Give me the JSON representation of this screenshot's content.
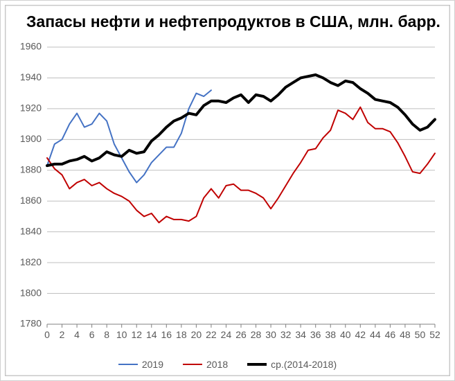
{
  "chart": {
    "type": "line",
    "title": "Запасы нефти и нефтепродуктов в США, млн. барр.",
    "title_fontsize": 23,
    "background_color": "#ffffff",
    "grid_color": "#bfbfbf",
    "axis_color": "#808080",
    "tick_label_color": "#595959",
    "tick_label_fontsize": 14,
    "x": {
      "min": 0,
      "max": 52,
      "tick_step": 2,
      "ticks": [
        0,
        2,
        4,
        6,
        8,
        10,
        12,
        14,
        16,
        18,
        20,
        22,
        24,
        26,
        28,
        30,
        32,
        34,
        36,
        38,
        40,
        42,
        44,
        46,
        48,
        50,
        52
      ]
    },
    "y": {
      "min": 1780,
      "max": 1960,
      "tick_step": 20,
      "ticks": [
        1780,
        1800,
        1820,
        1840,
        1860,
        1880,
        1900,
        1920,
        1940,
        1960
      ]
    },
    "series": [
      {
        "name": "2019",
        "label": "2019",
        "color": "#4472c4",
        "line_width": 2,
        "data": [
          [
            0,
            1883
          ],
          [
            1,
            1897
          ],
          [
            2,
            1900
          ],
          [
            3,
            1910
          ],
          [
            4,
            1917
          ],
          [
            5,
            1908
          ],
          [
            6,
            1910
          ],
          [
            7,
            1917
          ],
          [
            8,
            1912
          ],
          [
            9,
            1897
          ],
          [
            10,
            1888
          ],
          [
            11,
            1879
          ],
          [
            12,
            1872
          ],
          [
            13,
            1877
          ],
          [
            14,
            1885
          ],
          [
            15,
            1890
          ],
          [
            16,
            1895
          ],
          [
            17,
            1895
          ],
          [
            18,
            1904
          ],
          [
            19,
            1920
          ],
          [
            20,
            1930
          ],
          [
            21,
            1928
          ],
          [
            22,
            1932
          ]
        ]
      },
      {
        "name": "2018",
        "label": "2018",
        "color": "#c00000",
        "line_width": 2,
        "data": [
          [
            0,
            1888
          ],
          [
            1,
            1881
          ],
          [
            2,
            1877
          ],
          [
            3,
            1868
          ],
          [
            4,
            1872
          ],
          [
            5,
            1874
          ],
          [
            6,
            1870
          ],
          [
            7,
            1872
          ],
          [
            8,
            1868
          ],
          [
            9,
            1865
          ],
          [
            10,
            1863
          ],
          [
            11,
            1860
          ],
          [
            12,
            1854
          ],
          [
            13,
            1850
          ],
          [
            14,
            1852
          ],
          [
            15,
            1846
          ],
          [
            16,
            1850
          ],
          [
            17,
            1848
          ],
          [
            18,
            1848
          ],
          [
            19,
            1847
          ],
          [
            20,
            1850
          ],
          [
            21,
            1862
          ],
          [
            22,
            1868
          ],
          [
            23,
            1862
          ],
          [
            24,
            1870
          ],
          [
            25,
            1871
          ],
          [
            26,
            1867
          ],
          [
            27,
            1867
          ],
          [
            28,
            1865
          ],
          [
            29,
            1862
          ],
          [
            30,
            1855
          ],
          [
            31,
            1862
          ],
          [
            32,
            1870
          ],
          [
            33,
            1878
          ],
          [
            34,
            1885
          ],
          [
            35,
            1893
          ],
          [
            36,
            1894
          ],
          [
            37,
            1901
          ],
          [
            38,
            1906
          ],
          [
            39,
            1919
          ],
          [
            40,
            1917
          ],
          [
            41,
            1913
          ],
          [
            42,
            1921
          ],
          [
            43,
            1911
          ],
          [
            44,
            1907
          ],
          [
            45,
            1907
          ],
          [
            46,
            1905
          ],
          [
            47,
            1898
          ],
          [
            48,
            1889
          ],
          [
            49,
            1879
          ],
          [
            50,
            1878
          ],
          [
            51,
            1884
          ],
          [
            52,
            1891
          ]
        ]
      },
      {
        "name": "avg",
        "label": "ср.(2014-2018)",
        "color": "#000000",
        "line_width": 4,
        "data": [
          [
            0,
            1883
          ],
          [
            1,
            1884
          ],
          [
            2,
            1884
          ],
          [
            3,
            1886
          ],
          [
            4,
            1887
          ],
          [
            5,
            1889
          ],
          [
            6,
            1886
          ],
          [
            7,
            1888
          ],
          [
            8,
            1892
          ],
          [
            9,
            1890
          ],
          [
            10,
            1889
          ],
          [
            11,
            1893
          ],
          [
            12,
            1891
          ],
          [
            13,
            1892
          ],
          [
            14,
            1899
          ],
          [
            15,
            1903
          ],
          [
            16,
            1908
          ],
          [
            17,
            1912
          ],
          [
            18,
            1914
          ],
          [
            19,
            1917
          ],
          [
            20,
            1916
          ],
          [
            21,
            1922
          ],
          [
            22,
            1925
          ],
          [
            23,
            1925
          ],
          [
            24,
            1924
          ],
          [
            25,
            1927
          ],
          [
            26,
            1929
          ],
          [
            27,
            1924
          ],
          [
            28,
            1929
          ],
          [
            29,
            1928
          ],
          [
            30,
            1925
          ],
          [
            31,
            1929
          ],
          [
            32,
            1934
          ],
          [
            33,
            1937
          ],
          [
            34,
            1940
          ],
          [
            35,
            1941
          ],
          [
            36,
            1942
          ],
          [
            37,
            1940
          ],
          [
            38,
            1937
          ],
          [
            39,
            1935
          ],
          [
            40,
            1938
          ],
          [
            41,
            1937
          ],
          [
            42,
            1933
          ],
          [
            43,
            1930
          ],
          [
            44,
            1926
          ],
          [
            45,
            1925
          ],
          [
            46,
            1924
          ],
          [
            47,
            1921
          ],
          [
            48,
            1916
          ],
          [
            49,
            1910
          ],
          [
            50,
            1906
          ],
          [
            51,
            1908
          ],
          [
            52,
            1913
          ]
        ]
      }
    ],
    "legend": {
      "items": [
        {
          "label": "2019",
          "color": "#4472c4",
          "line_width": 2
        },
        {
          "label": "2018",
          "color": "#c00000",
          "line_width": 2
        },
        {
          "label": "ср.(2014-2018)",
          "color": "#000000",
          "line_width": 4
        }
      ]
    }
  }
}
